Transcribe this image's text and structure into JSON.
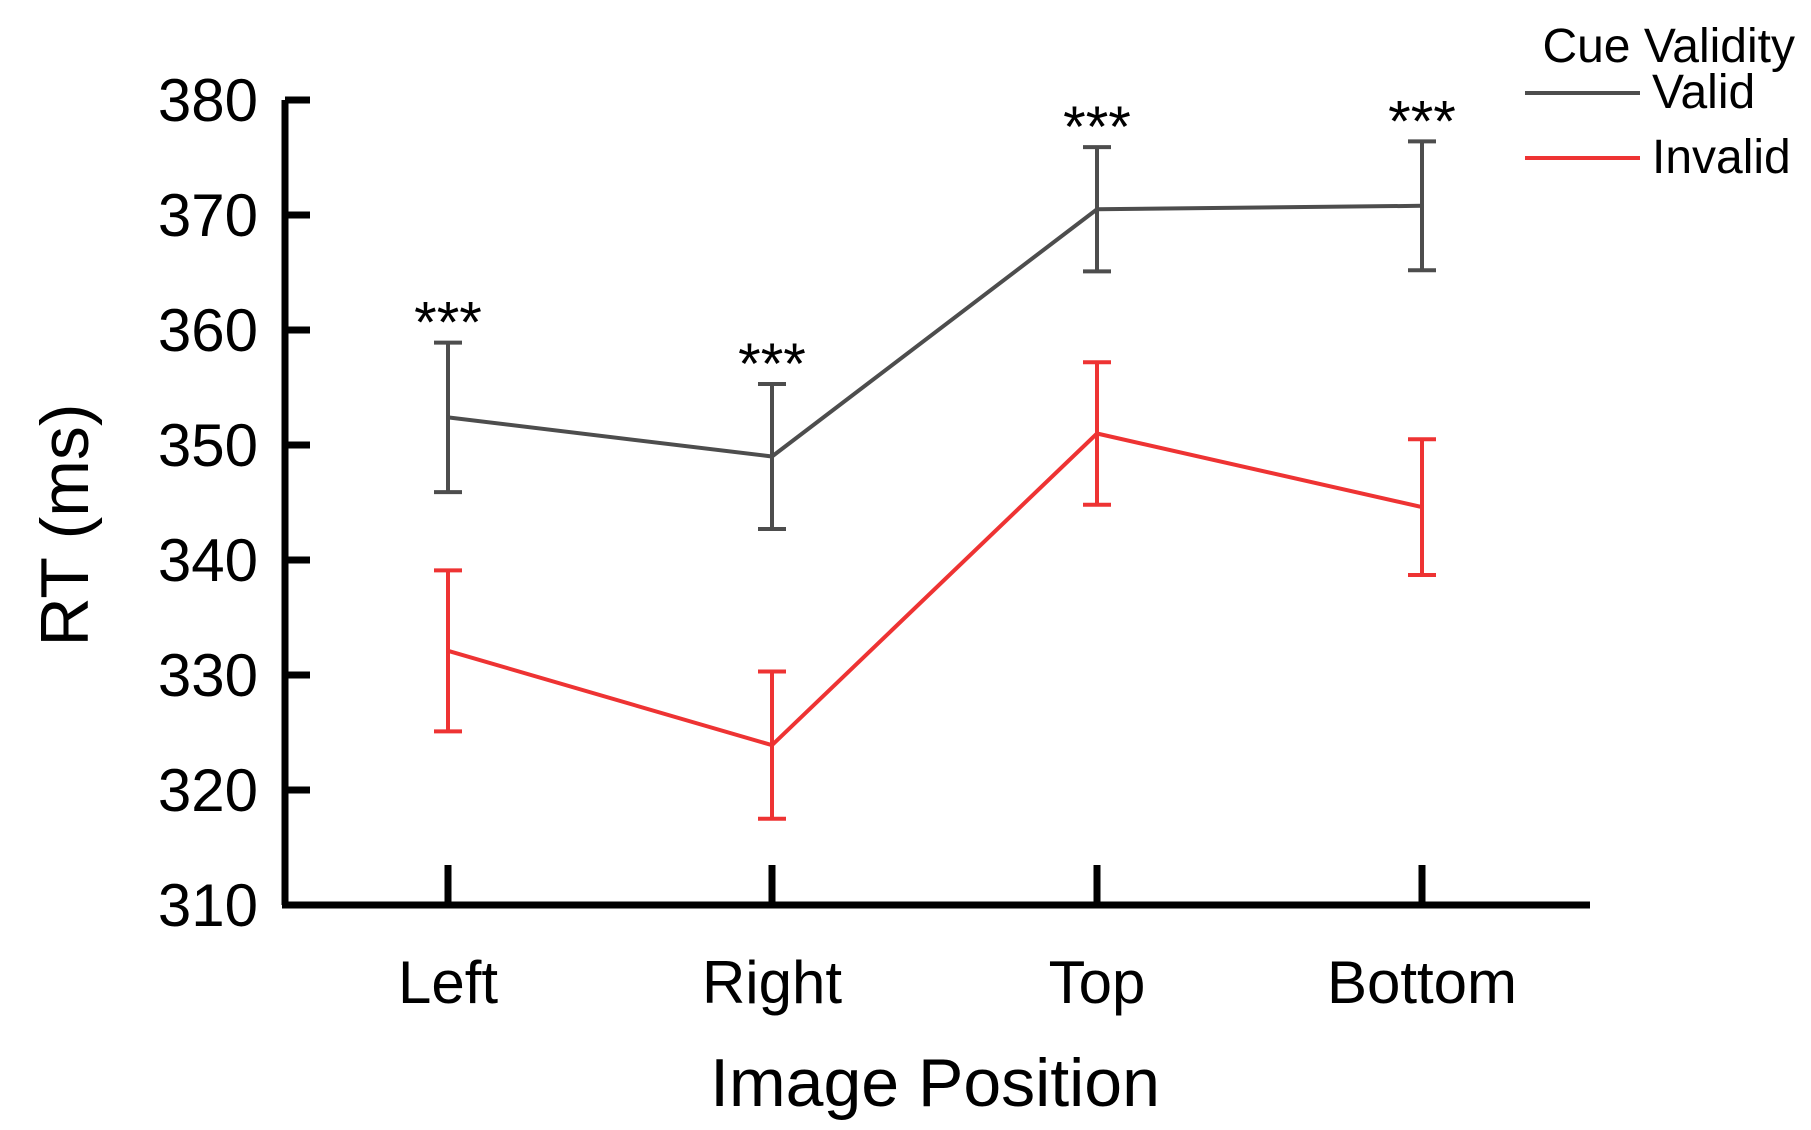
{
  "chart_data": {
    "type": "line",
    "categories": [
      "Left",
      "Right",
      "Top",
      "Bottom"
    ],
    "xlabel": "Image Position",
    "ylabel": "RT (ms)",
    "ylim": [
      310,
      380
    ],
    "yticks": [
      "310",
      "320",
      "330",
      "340",
      "350",
      "360",
      "370",
      "380"
    ],
    "grid": false,
    "legend": {
      "title": "Cue Validity",
      "placement": "top-right"
    },
    "series": [
      {
        "name": "Valid",
        "color": "#4d4d4d",
        "values": [
          352.4,
          349.0,
          370.5,
          370.8
        ],
        "error": [
          6.5,
          6.3,
          5.4,
          5.6
        ]
      },
      {
        "name": "Invalid",
        "color": "#ee3333",
        "values": [
          332.1,
          323.9,
          351.0,
          344.6
        ],
        "error": [
          7.0,
          6.4,
          6.2,
          5.9
        ]
      }
    ],
    "annotations": [
      "***",
      "***",
      "***",
      "***"
    ]
  }
}
